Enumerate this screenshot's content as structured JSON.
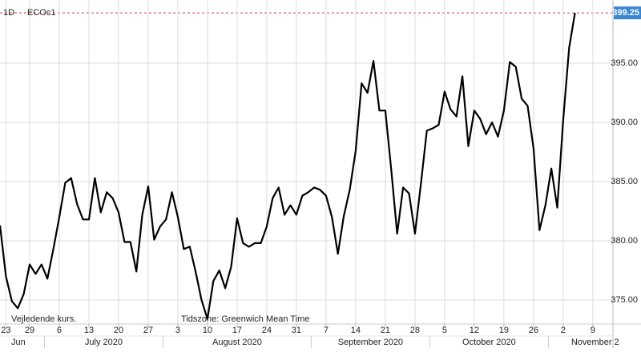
{
  "chart_data": {
    "type": "line",
    "interval": "1D",
    "title": "ECOc1",
    "annotations": [
      "Vejledende kurs.",
      "Tidszone: Greenwich Mean Time"
    ],
    "months": [
      "Jun",
      "July 2020",
      "August 2020",
      "September 2020",
      "October 2020",
      "November 2"
    ],
    "categories": [
      null,
      "23",
      null,
      null,
      null,
      "29",
      null,
      null,
      null,
      null,
      "6",
      null,
      null,
      null,
      null,
      "13",
      null,
      null,
      null,
      null,
      "20",
      null,
      null,
      null,
      null,
      "27",
      null,
      null,
      null,
      null,
      "3",
      null,
      null,
      null,
      null,
      "10",
      null,
      null,
      null,
      null,
      "17",
      null,
      null,
      null,
      null,
      "24",
      null,
      null,
      null,
      null,
      "31",
      null,
      null,
      null,
      null,
      "7",
      null,
      null,
      null,
      null,
      "14",
      null,
      null,
      null,
      null,
      "21",
      null,
      null,
      null,
      null,
      "28",
      null,
      null,
      null,
      null,
      "5",
      null,
      null,
      null,
      null,
      "12",
      null,
      null,
      null,
      null,
      "19",
      null,
      null,
      null,
      null,
      "26",
      null,
      null,
      null,
      null,
      "2",
      null,
      null,
      null,
      null,
      "9",
      null,
      null
    ],
    "series": [
      {
        "name": "ECOc1",
        "color": "#000000",
        "values": [
          381.3,
          377.0,
          374.9,
          374.3,
          375.5,
          378.0,
          377.2,
          378.0,
          376.8,
          379.3,
          382.0,
          384.9,
          385.3,
          383.1,
          381.8,
          381.8,
          385.3,
          382.4,
          384.1,
          383.6,
          382.4,
          379.9,
          379.9,
          377.4,
          382.2,
          384.6,
          380.1,
          381.2,
          381.8,
          384.1,
          382.0,
          379.3,
          379.5,
          377.4,
          375.0,
          373.4,
          376.6,
          377.5,
          376.0,
          377.8,
          381.9,
          379.8,
          379.5,
          379.8,
          379.8,
          381.2,
          383.6,
          384.5,
          382.2,
          383.0,
          382.2,
          383.8,
          384.1,
          384.5,
          384.3,
          383.8,
          382.0,
          378.9,
          382.1,
          384.3,
          387.6,
          393.3,
          392.5,
          395.2,
          391.0,
          391.0,
          386.0,
          380.6,
          384.5,
          384.0,
          380.6,
          384.8,
          389.3,
          389.5,
          389.8,
          392.6,
          391.1,
          390.5,
          393.9,
          388.0,
          391.0,
          390.3,
          389.0,
          390.0,
          388.8,
          391.0,
          395.1,
          394.7,
          392.0,
          391.4,
          387.8,
          380.9,
          383.0,
          386.1,
          382.8,
          390.2,
          396.3,
          399.25,
          null,
          null,
          null,
          null,
          null
        ]
      }
    ],
    "last_label": "399.25",
    "last_label_color": "#3a86d0",
    "ylim": [
      372.97,
      400.34
    ],
    "yticks": [
      {
        "value": 375,
        "label": "375.00"
      },
      {
        "value": 380,
        "label": "380.00"
      },
      {
        "value": 385,
        "label": "385.00"
      },
      {
        "value": 390,
        "label": "390.00"
      },
      {
        "value": 395,
        "label": "395.00"
      }
    ],
    "grid": true
  }
}
